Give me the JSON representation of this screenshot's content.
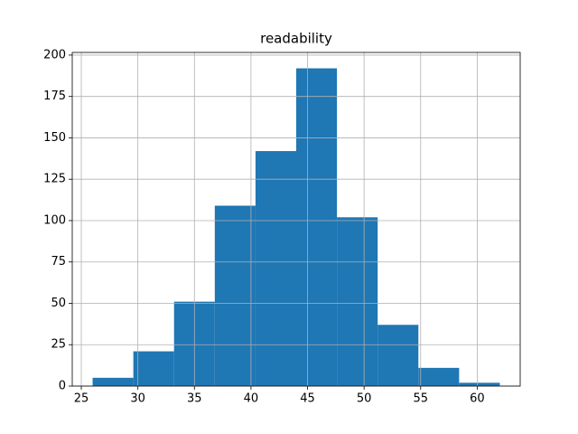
{
  "chart_data": {
    "type": "histogram",
    "title": "readability",
    "bins": [
      26,
      29.6,
      33.2,
      36.8,
      40.4,
      44,
      47.6,
      51.2,
      54.8,
      58.4,
      62
    ],
    "values": [
      5,
      21,
      51,
      109,
      142,
      192,
      102,
      37,
      11,
      2
    ],
    "color": "#1f77b4",
    "xlim": [
      24.2,
      63.8
    ],
    "xticks": [
      25,
      30,
      35,
      40,
      45,
      50,
      55,
      60
    ],
    "ylim": [
      0,
      201.6
    ],
    "yticks": [
      0,
      25,
      50,
      75,
      100,
      125,
      150,
      175,
      200
    ],
    "grid": true
  }
}
